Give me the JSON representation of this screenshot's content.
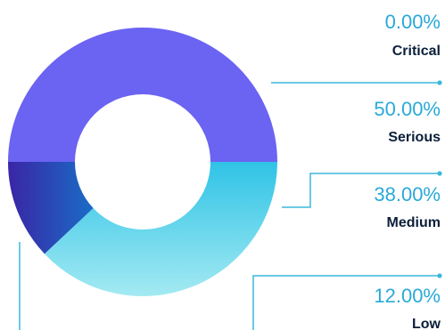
{
  "chart_data": {
    "type": "donut",
    "categories": [
      "Critical",
      "Serious",
      "Medium",
      "Low"
    ],
    "values": [
      0.0,
      50.0,
      38.0,
      12.0
    ],
    "value_labels": [
      "0.00%",
      "50.00%",
      "38.00%",
      "12.00%"
    ],
    "title": "",
    "legend": "right",
    "colors": {
      "critical": "#6b63f2",
      "serious": "#6b63f2",
      "medium_top": "#2fc3e6",
      "medium_bottom": "#a4eaf2",
      "low_left": "#3a25a6",
      "low_right": "#1a6cc6",
      "leader_line": "#3ab8dc",
      "percent_text": "#29a9d8",
      "label_text": "#0b1f3a"
    }
  }
}
